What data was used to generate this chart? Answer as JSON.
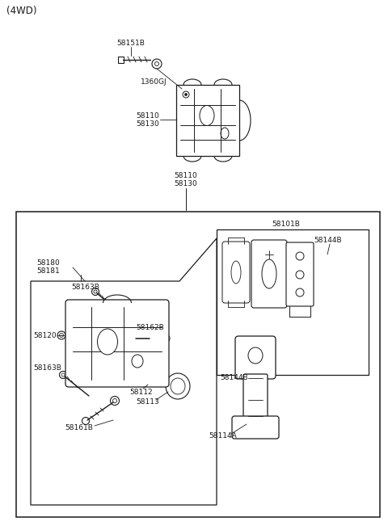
{
  "bg_color": "#ffffff",
  "line_color": "#1a1a1a",
  "text_color": "#1a1a1a",
  "figsize": [
    4.8,
    6.56
  ],
  "dpi": 100,
  "fs": 6.5,
  "labels": {
    "top_label": "(4WD)",
    "p58151B": "58151B",
    "p1360GJ": "1360GJ",
    "p58110a": "58110",
    "p58130a": "58130",
    "p58110b": "58110",
    "p58130b": "58130",
    "p58101B": "58101B",
    "p58144B_t": "58144B",
    "p58144B_b": "58144B",
    "p58180": "58180",
    "p58181": "58181",
    "p58163B_t": "58163B",
    "p58120": "58120",
    "p58162B": "58162B",
    "p58163B_b": "58163B",
    "p58112": "58112",
    "p58113": "58113",
    "p58161B": "58161B",
    "p58114A": "58114A"
  }
}
